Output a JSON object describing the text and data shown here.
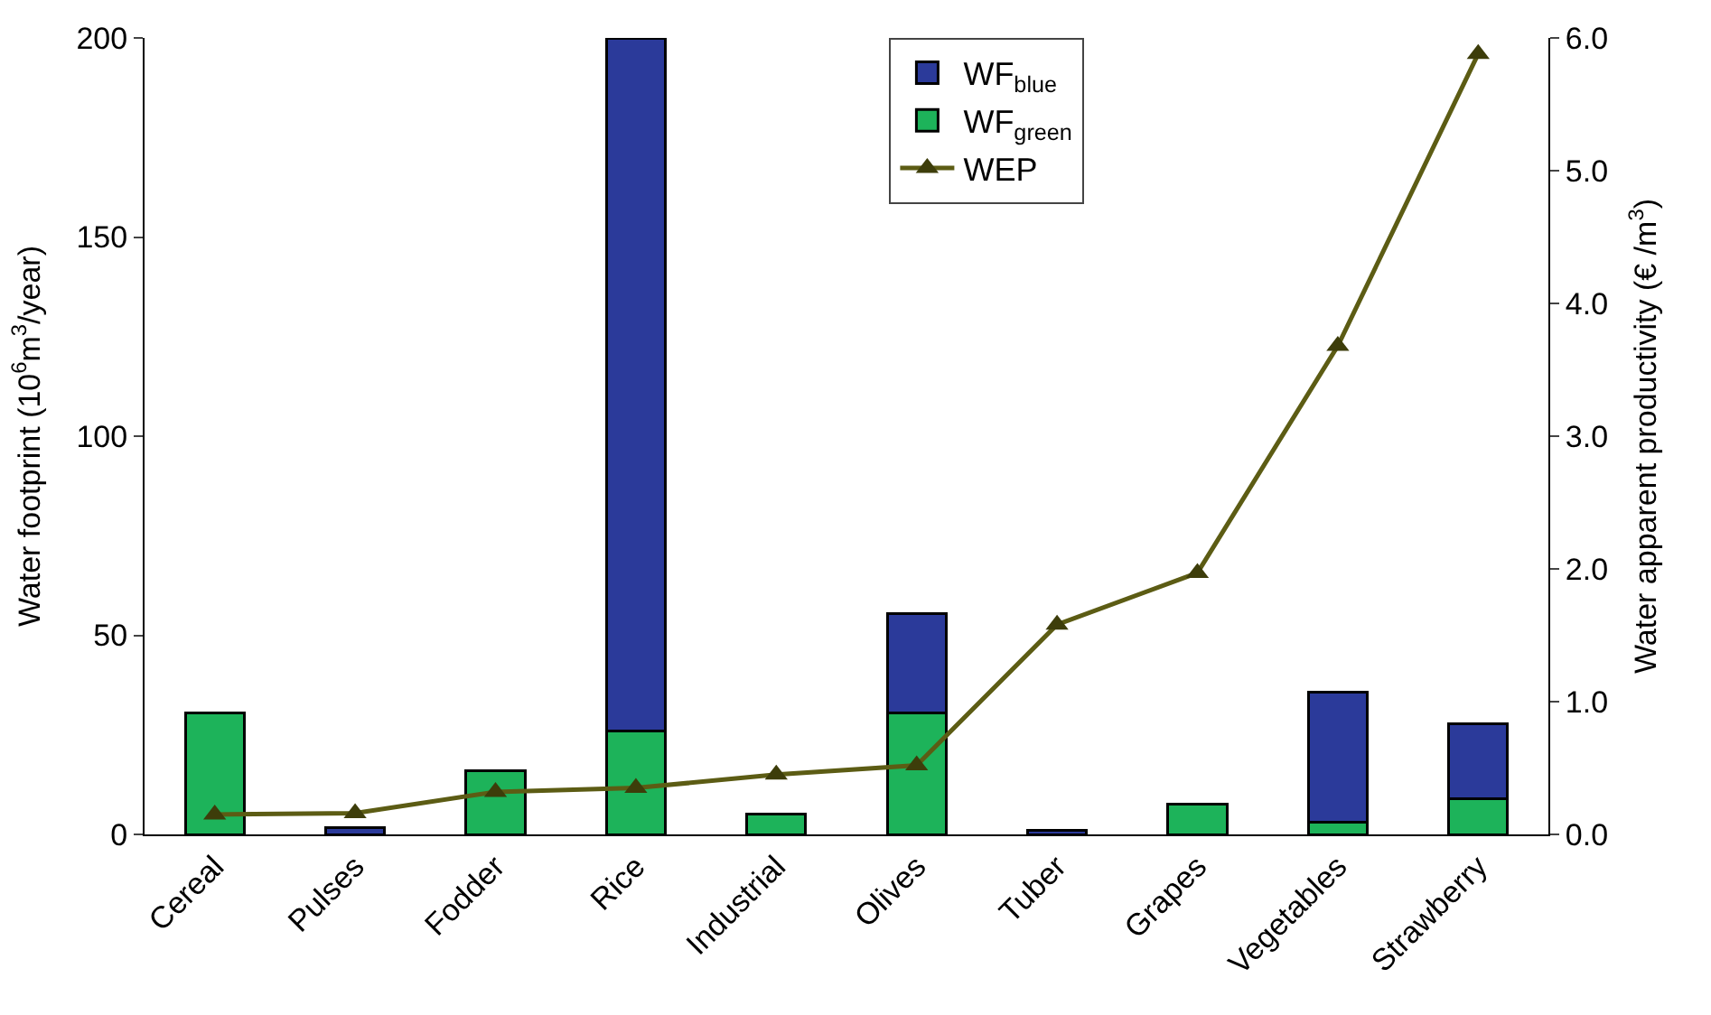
{
  "chart_data": {
    "type": "bar",
    "stacked": true,
    "categories": [
      "Cereal",
      "Pulses",
      "Fodder",
      "Rice",
      "Industrial",
      "Olives",
      "Tuber",
      "Grapes",
      "Vegetables",
      "Strawberry"
    ],
    "series": [
      {
        "name": "WF$_{green}$",
        "color": "#1db35a",
        "values": [
          30.4,
          null,
          16,
          25.9,
          5,
          30.4,
          null,
          7.6,
          3.1,
          9
        ]
      },
      {
        "name": "WF$_{blue}$",
        "color": "#2b3a9a",
        "values": [
          null,
          1.8,
          null,
          174.1,
          null,
          25,
          1,
          null,
          32.6,
          18.7
        ]
      },
      {
        "name": "WEP",
        "type": "line",
        "axis": "y2",
        "color": "#5c5c14",
        "marker": "triangle",
        "values": [
          0.15,
          0.16,
          0.32,
          0.35,
          0.45,
          0.52,
          1.58,
          1.97,
          3.68,
          5.88
        ]
      }
    ],
    "ylabel": "Water footprint (10$^{6}$m$^{3}$/year)",
    "y2label": "Water apparent productivity (€ /m$^{3}$)",
    "ylim": [
      0,
      200
    ],
    "yticks": [
      0,
      50,
      100,
      150,
      200
    ],
    "y2lim": [
      0,
      6
    ],
    "y2ticks": [
      {
        "value": 0,
        "label": "0.0"
      },
      {
        "value": 1,
        "label": "1.0"
      },
      {
        "value": 2,
        "label": "2.0"
      },
      {
        "value": 3,
        "label": "3.0"
      },
      {
        "value": 4,
        "label": "4.0"
      },
      {
        "value": 5,
        "label": "5.0"
      },
      {
        "value": 6,
        "label": "6.0"
      }
    ],
    "legend": "top"
  }
}
